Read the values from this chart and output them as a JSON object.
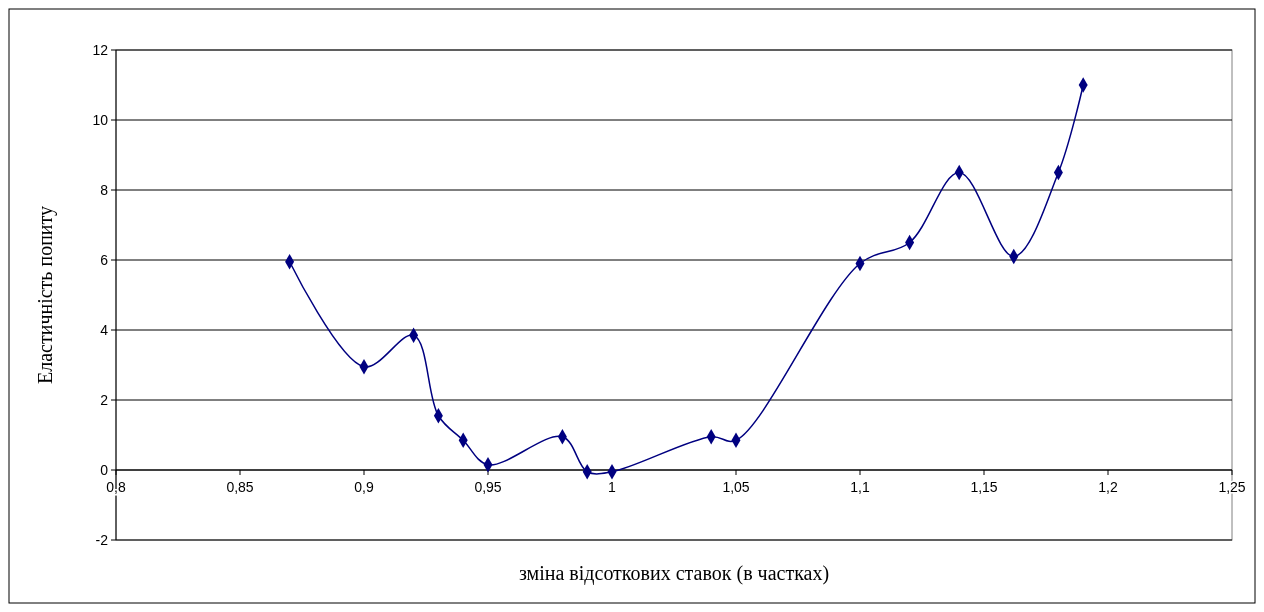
{
  "chart_data": {
    "type": "line",
    "xlabel": "зміна відсоткових ставок (в частках)",
    "ylabel": "Еластичність попиту",
    "x": [
      0.87,
      0.9,
      0.92,
      0.93,
      0.94,
      0.95,
      0.98,
      0.99,
      1.0,
      1.04,
      1.05,
      1.1,
      1.12,
      1.14,
      1.162,
      1.18,
      1.19
    ],
    "series": [
      {
        "color": "#000080",
        "values": [
          5.95,
          2.95,
          3.85,
          1.55,
          0.85,
          0.15,
          0.95,
          -0.05,
          -0.05,
          0.95,
          0.85,
          5.9,
          6.5,
          8.5,
          6.1,
          8.5,
          11
        ]
      }
    ],
    "xlim": [
      0.8,
      1.25
    ],
    "xticks": [
      {
        "value": 0.8,
        "label": "0,8"
      },
      {
        "value": 0.85,
        "label": "0,85"
      },
      {
        "value": 0.9,
        "label": "0,9"
      },
      {
        "value": 0.95,
        "label": "0,95"
      },
      1,
      {
        "value": 1.05,
        "label": "1,05"
      },
      {
        "value": 1.1,
        "label": "1,1"
      },
      {
        "value": 1.15,
        "label": "1,15"
      },
      {
        "value": 1.2,
        "label": "1,2"
      },
      {
        "value": 1.25,
        "label": "1,25"
      }
    ],
    "ylim": [
      -2,
      12
    ],
    "yticks": [
      -2,
      0,
      2,
      4,
      6,
      8,
      10,
      12
    ],
    "grid": "y",
    "marker": "diamond",
    "line_style": "solid"
  }
}
